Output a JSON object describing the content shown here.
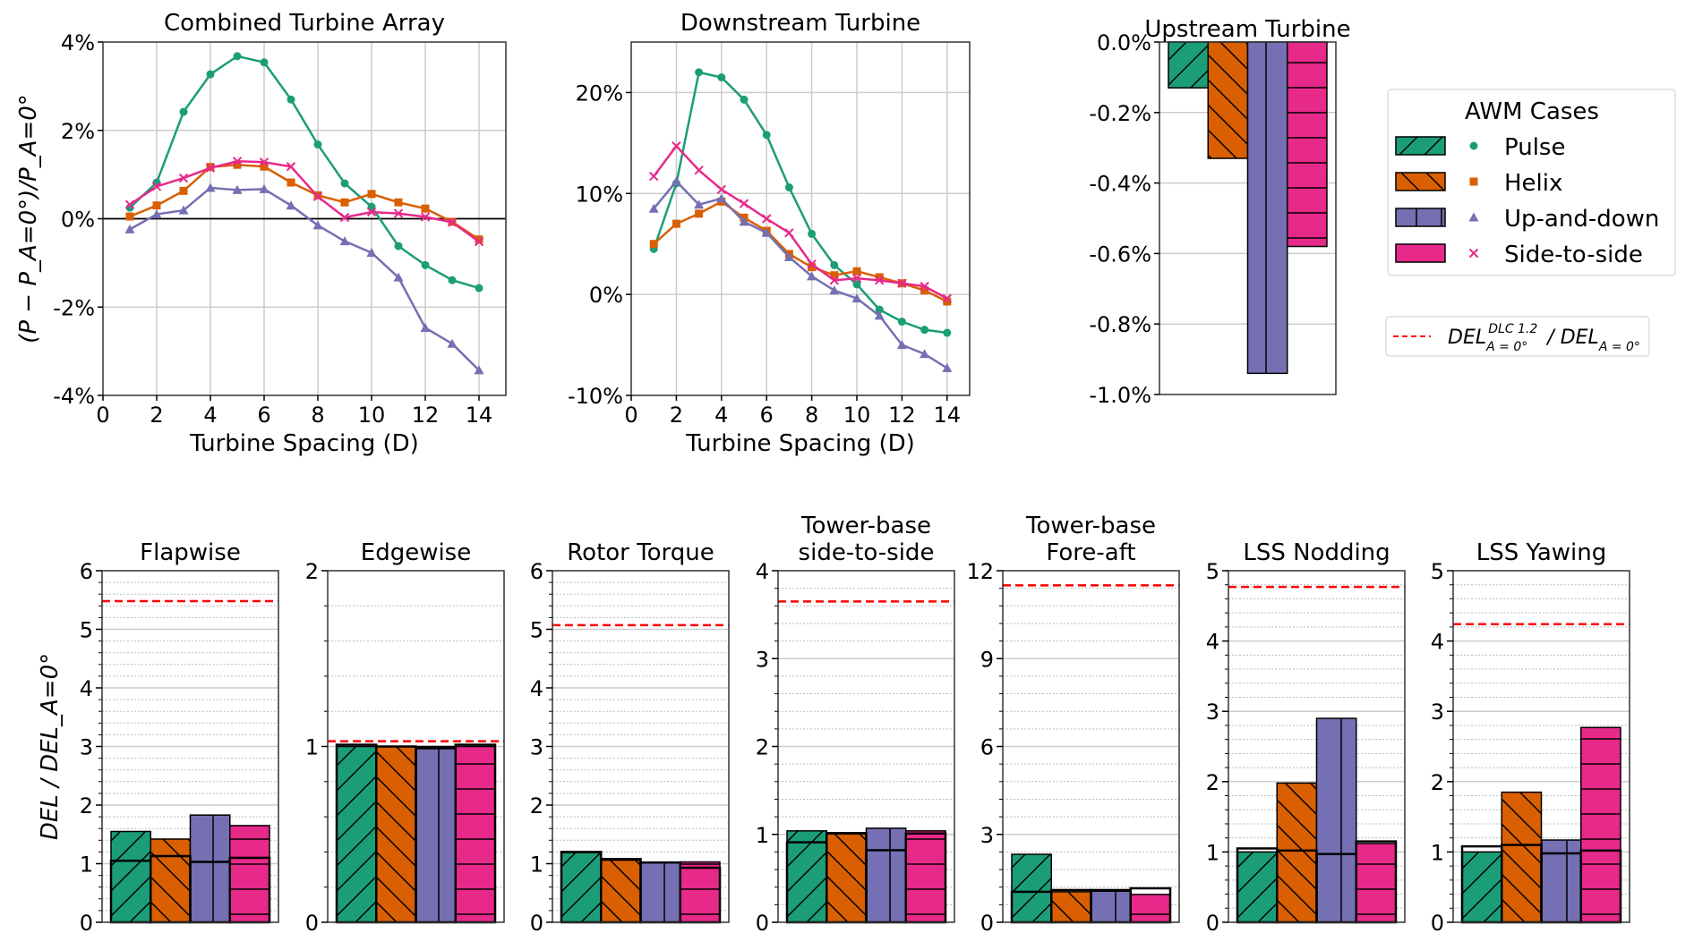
{
  "cases": [
    {
      "name": "Pulse",
      "color": "#1b9e77",
      "marker": "circle",
      "hatch": "forward-diagonal"
    },
    {
      "name": "Helix",
      "color": "#d95f02",
      "marker": "square",
      "hatch": "back-diagonal"
    },
    {
      "name": "Up-and-down",
      "color": "#7570b3",
      "marker": "triangle",
      "hatch": "vertical"
    },
    {
      "name": "Side-to-side",
      "color": "#e7298a",
      "marker": "x",
      "hatch": "horizontal"
    }
  ],
  "legend": {
    "title": "AWM Cases",
    "entries": [
      "Pulse",
      "Helix",
      "Up-and-down",
      "Side-to-side"
    ],
    "reference_label_main": "DEL",
    "reference_label_sub": "A = 0°",
    "reference_label_sup": "DLC 1.2",
    "reference_label_rest": " / DEL",
    "reference_label_rest_sub": "A = 0°",
    "reference_color": "#ff0000"
  },
  "chart_data": [
    {
      "type": "line",
      "title": "Combined Turbine Array",
      "xlabel": "Turbine Spacing (D)",
      "ylabel": "(P − P_A=0°)/P_A=0°",
      "xlim": [
        0,
        15
      ],
      "ylim": [
        -4,
        4
      ],
      "xticks": [
        0,
        2,
        4,
        6,
        8,
        10,
        12,
        14
      ],
      "yticks": [
        -4,
        -2,
        0,
        2,
        4
      ],
      "ytick_labels": [
        "-4%",
        "-2%",
        "0%",
        "2%",
        "4%"
      ],
      "grid": true,
      "zero_line": true,
      "x": [
        1,
        2,
        3,
        4,
        5,
        6,
        7,
        8,
        9,
        10,
        11,
        12,
        13,
        14
      ],
      "series": [
        {
          "name": "Pulse",
          "values": [
            0.25,
            0.82,
            2.42,
            3.27,
            3.68,
            3.54,
            2.7,
            1.68,
            0.8,
            0.27,
            -0.62,
            -1.05,
            -1.39,
            -1.57
          ]
        },
        {
          "name": "Helix",
          "values": [
            0.05,
            0.3,
            0.63,
            1.17,
            1.22,
            1.18,
            0.82,
            0.53,
            0.37,
            0.56,
            0.37,
            0.23,
            -0.07,
            -0.47
          ]
        },
        {
          "name": "Up-and-down",
          "values": [
            -0.24,
            0.1,
            0.19,
            0.7,
            0.65,
            0.67,
            0.3,
            -0.15,
            -0.51,
            -0.77,
            -1.33,
            -2.47,
            -2.83,
            -3.43
          ]
        },
        {
          "name": "Side-to-side",
          "values": [
            0.32,
            0.73,
            0.92,
            1.15,
            1.3,
            1.28,
            1.18,
            0.5,
            0.03,
            0.15,
            0.12,
            0.04,
            -0.08,
            -0.52
          ]
        }
      ]
    },
    {
      "type": "line",
      "title": "Downstream Turbine",
      "xlabel": "Turbine Spacing (D)",
      "ylabel": "",
      "xlim": [
        0,
        15
      ],
      "ylim": [
        -10,
        25
      ],
      "xticks": [
        0,
        2,
        4,
        6,
        8,
        10,
        12,
        14
      ],
      "yticks": [
        -10,
        0,
        10,
        20
      ],
      "ytick_labels": [
        "-10%",
        "0%",
        "10%",
        "20%"
      ],
      "grid": true,
      "zero_line": false,
      "x": [
        1,
        2,
        3,
        4,
        5,
        6,
        7,
        8,
        9,
        10,
        11,
        12,
        13,
        14
      ],
      "series": [
        {
          "name": "Pulse",
          "values": [
            4.5,
            11.0,
            22.0,
            21.5,
            19.3,
            15.8,
            10.6,
            6.0,
            2.9,
            1.0,
            -1.5,
            -2.7,
            -3.5,
            -3.8
          ]
        },
        {
          "name": "Helix",
          "values": [
            5.0,
            7.0,
            8.0,
            9.2,
            7.6,
            6.3,
            4.0,
            2.7,
            1.9,
            2.3,
            1.7,
            1.1,
            0.4,
            -0.7
          ]
        },
        {
          "name": "Up-and-down",
          "values": [
            8.5,
            11.2,
            8.9,
            9.5,
            7.2,
            6.1,
            3.7,
            1.8,
            0.4,
            -0.4,
            -2.1,
            -5.0,
            -5.9,
            -7.3
          ]
        },
        {
          "name": "Side-to-side",
          "values": [
            11.7,
            14.7,
            12.3,
            10.4,
            9.0,
            7.5,
            6.1,
            3.0,
            1.4,
            1.6,
            1.4,
            1.1,
            0.8,
            -0.4
          ]
        }
      ]
    },
    {
      "type": "bar",
      "title": "Upstream Turbine",
      "xlabel": "",
      "ylabel": "",
      "ylim": [
        -1.0,
        0.0
      ],
      "yticks": [
        -1.0,
        -0.8,
        -0.6,
        -0.4,
        -0.2,
        0.0
      ],
      "ytick_labels": [
        "-1.0%",
        "-0.8%",
        "-0.6%",
        "-0.4%",
        "-0.2%",
        "0.0%"
      ],
      "grid": true,
      "categories": [
        "Pulse",
        "Helix",
        "Up-and-down",
        "Side-to-side"
      ],
      "values": [
        -0.13,
        -0.33,
        -0.94,
        -0.58
      ]
    },
    {
      "type": "bar",
      "title": "Flapwise",
      "ylabel": "DEL / DEL_A=0°",
      "ylim": [
        0,
        6
      ],
      "yticks": [
        0,
        1,
        2,
        3,
        4,
        5,
        6
      ],
      "ytick_labels": [
        "0",
        "1",
        "2",
        "3",
        "4",
        "5",
        "6"
      ],
      "categories": [
        "Pulse",
        "Helix",
        "Up-and-down",
        "Side-to-side"
      ],
      "series": [
        {
          "name": "filled",
          "values": [
            1.55,
            1.42,
            1.83,
            1.65
          ]
        },
        {
          "name": "outline",
          "values": [
            1.05,
            1.13,
            1.03,
            1.1
          ]
        }
      ],
      "reference_line": 5.48
    },
    {
      "type": "bar",
      "title": "Edgewise",
      "ylabel": "",
      "ylim": [
        0,
        2
      ],
      "yticks": [
        0,
        1,
        2
      ],
      "ytick_labels": [
        "0",
        "1",
        "2"
      ],
      "categories": [
        "Pulse",
        "Helix",
        "Up-and-down",
        "Side-to-side"
      ],
      "series": [
        {
          "name": "filled",
          "values": [
            1.0,
            1.0,
            1.0,
            1.0
          ]
        },
        {
          "name": "outline",
          "values": [
            1.01,
            1.0,
            0.99,
            1.01
          ]
        }
      ],
      "reference_line": 1.03
    },
    {
      "type": "bar",
      "title": "Rotor Torque",
      "ylabel": "",
      "ylim": [
        0,
        6
      ],
      "yticks": [
        0,
        1,
        2,
        3,
        4,
        5,
        6
      ],
      "ytick_labels": [
        "0",
        "1",
        "2",
        "3",
        "4",
        "5",
        "6"
      ],
      "categories": [
        "Pulse",
        "Helix",
        "Up-and-down",
        "Side-to-side"
      ],
      "series": [
        {
          "name": "filled",
          "values": [
            1.19,
            1.06,
            1.02,
            1.03
          ]
        },
        {
          "name": "outline",
          "values": [
            1.2,
            1.08,
            1.02,
            0.93
          ]
        }
      ],
      "reference_line": 5.07
    },
    {
      "type": "bar",
      "title": "Tower-base\nside-to-side",
      "ylabel": "",
      "ylim": [
        0,
        4
      ],
      "yticks": [
        0,
        1,
        2,
        3,
        4
      ],
      "ytick_labels": [
        "0",
        "1",
        "2",
        "3",
        "4"
      ],
      "categories": [
        "Pulse",
        "Helix",
        "Up-and-down",
        "Side-to-side"
      ],
      "series": [
        {
          "name": "filled",
          "values": [
            1.04,
            1.02,
            1.07,
            1.04
          ]
        },
        {
          "name": "outline",
          "values": [
            0.91,
            1.01,
            0.82,
            1.01
          ]
        }
      ],
      "reference_line": 3.65
    },
    {
      "type": "bar",
      "title": "Tower-base\nFore-aft",
      "ylabel": "",
      "ylim": [
        0,
        12
      ],
      "yticks": [
        0,
        3,
        6,
        9,
        12
      ],
      "ytick_labels": [
        "0",
        "3",
        "6",
        "9",
        "12"
      ],
      "categories": [
        "Pulse",
        "Helix",
        "Up-and-down",
        "Side-to-side"
      ],
      "series": [
        {
          "name": "filled",
          "values": [
            2.32,
            1.04,
            1.06,
            0.95
          ]
        },
        {
          "name": "outline",
          "values": [
            1.04,
            1.1,
            1.1,
            1.16
          ]
        }
      ],
      "reference_line": 11.5
    },
    {
      "type": "bar",
      "title": "LSS Nodding",
      "ylabel": "",
      "ylim": [
        0,
        5
      ],
      "yticks": [
        0,
        1,
        2,
        3,
        4,
        5
      ],
      "ytick_labels": [
        "0",
        "1",
        "2",
        "3",
        "4",
        "5"
      ],
      "categories": [
        "Pulse",
        "Helix",
        "Up-and-down",
        "Side-to-side"
      ],
      "series": [
        {
          "name": "filled",
          "values": [
            1.0,
            1.98,
            2.9,
            1.12
          ]
        },
        {
          "name": "outline",
          "values": [
            1.05,
            1.02,
            0.97,
            1.15
          ]
        }
      ],
      "reference_line": 4.77
    },
    {
      "type": "bar",
      "title": "LSS Yawing",
      "ylabel": "",
      "ylim": [
        0,
        5
      ],
      "yticks": [
        0,
        1,
        2,
        3,
        4,
        5
      ],
      "ytick_labels": [
        "0",
        "1",
        "2",
        "3",
        "4",
        "5"
      ],
      "categories": [
        "Pulse",
        "Helix",
        "Up-and-down",
        "Side-to-side"
      ],
      "series": [
        {
          "name": "filled",
          "values": [
            1.0,
            1.85,
            1.17,
            2.77
          ]
        },
        {
          "name": "outline",
          "values": [
            1.08,
            1.1,
            0.98,
            1.02
          ]
        }
      ],
      "reference_line": 4.24
    }
  ]
}
